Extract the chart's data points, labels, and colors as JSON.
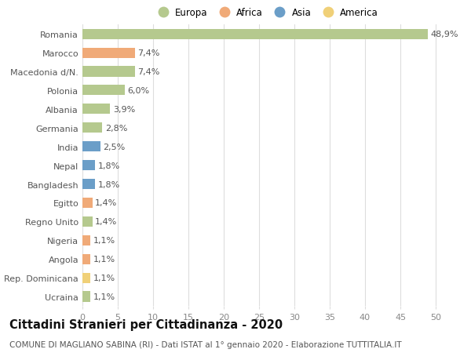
{
  "countries": [
    "Romania",
    "Marocco",
    "Macedonia d/N.",
    "Polonia",
    "Albania",
    "Germania",
    "India",
    "Nepal",
    "Bangladesh",
    "Egitto",
    "Regno Unito",
    "Nigeria",
    "Angola",
    "Rep. Dominicana",
    "Ucraina"
  ],
  "values": [
    48.9,
    7.4,
    7.4,
    6.0,
    3.9,
    2.8,
    2.5,
    1.8,
    1.8,
    1.4,
    1.4,
    1.1,
    1.1,
    1.1,
    1.1
  ],
  "labels": [
    "48,9%",
    "7,4%",
    "7,4%",
    "6,0%",
    "3,9%",
    "2,8%",
    "2,5%",
    "1,8%",
    "1,8%",
    "1,4%",
    "1,4%",
    "1,1%",
    "1,1%",
    "1,1%",
    "1,1%"
  ],
  "continents": [
    "Europa",
    "Africa",
    "Europa",
    "Europa",
    "Europa",
    "Europa",
    "Asia",
    "Asia",
    "Asia",
    "Africa",
    "Europa",
    "Africa",
    "Africa",
    "America",
    "Europa"
  ],
  "continent_colors": {
    "Europa": "#b5c98e",
    "Africa": "#f0aa78",
    "Asia": "#6b9ec8",
    "America": "#f0d078"
  },
  "legend_order": [
    "Europa",
    "Africa",
    "Asia",
    "America"
  ],
  "xlim": [
    0,
    52
  ],
  "xticks": [
    0,
    5,
    10,
    15,
    20,
    25,
    30,
    35,
    40,
    45,
    50
  ],
  "title": "Cittadini Stranieri per Cittadinanza - 2020",
  "subtitle": "COMUNE DI MAGLIANO SABINA (RI) - Dati ISTAT al 1° gennaio 2020 - Elaborazione TUTTITALIA.IT",
  "bg_color": "#ffffff",
  "grid_color": "#dddddd",
  "bar_height": 0.55,
  "label_fontsize": 8,
  "ytick_fontsize": 8,
  "xtick_fontsize": 8,
  "title_fontsize": 10.5,
  "subtitle_fontsize": 7.5
}
